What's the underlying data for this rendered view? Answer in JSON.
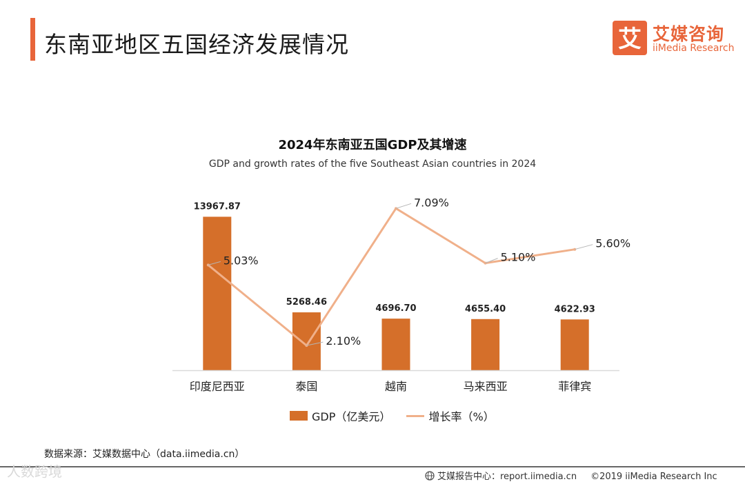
{
  "header": {
    "title": "东南亚地区五国经济发展情况"
  },
  "logo": {
    "mark": "艾",
    "name_cn": "艾媒咨询",
    "name_en": "iiMedia Research",
    "color": "#e8653a"
  },
  "chart_data": {
    "type": "bar",
    "title": "2024年东南亚五国GDP及其增速",
    "subtitle": "GDP and growth rates of the five Southeast Asian countries in 2024",
    "categories": [
      "印度尼西亚",
      "泰国",
      "越南",
      "马来西亚",
      "菲律宾"
    ],
    "series": [
      {
        "name": "GDP（亿美元）",
        "type": "bar",
        "color": "#d56f2a",
        "values": [
          13967.87,
          5268.46,
          4696.7,
          4655.4,
          4622.93
        ],
        "labels": [
          "13967.87",
          "5268.46",
          "4696.70",
          "4655.40",
          "4622.93"
        ]
      },
      {
        "name": "增长率（%）",
        "type": "line",
        "color": "#f0b08a",
        "values": [
          5.03,
          2.1,
          7.09,
          5.1,
          5.6
        ],
        "labels": [
          "5.03%",
          "2.10%",
          "7.09%",
          "5.10%",
          "5.60%"
        ]
      }
    ],
    "y_left_range": [
      0,
      16000
    ],
    "y_right_range": [
      1.2,
      7.6
    ],
    "grid": false,
    "legend_position": "bottom"
  },
  "source": "数据来源：艾媒数据中心（data.iimedia.cn）",
  "watermark": "人数跨境",
  "footer": {
    "report_site": "艾媒报告中心：report.iimedia.cn",
    "copyright": "©2019  iiMedia Research  Inc"
  }
}
